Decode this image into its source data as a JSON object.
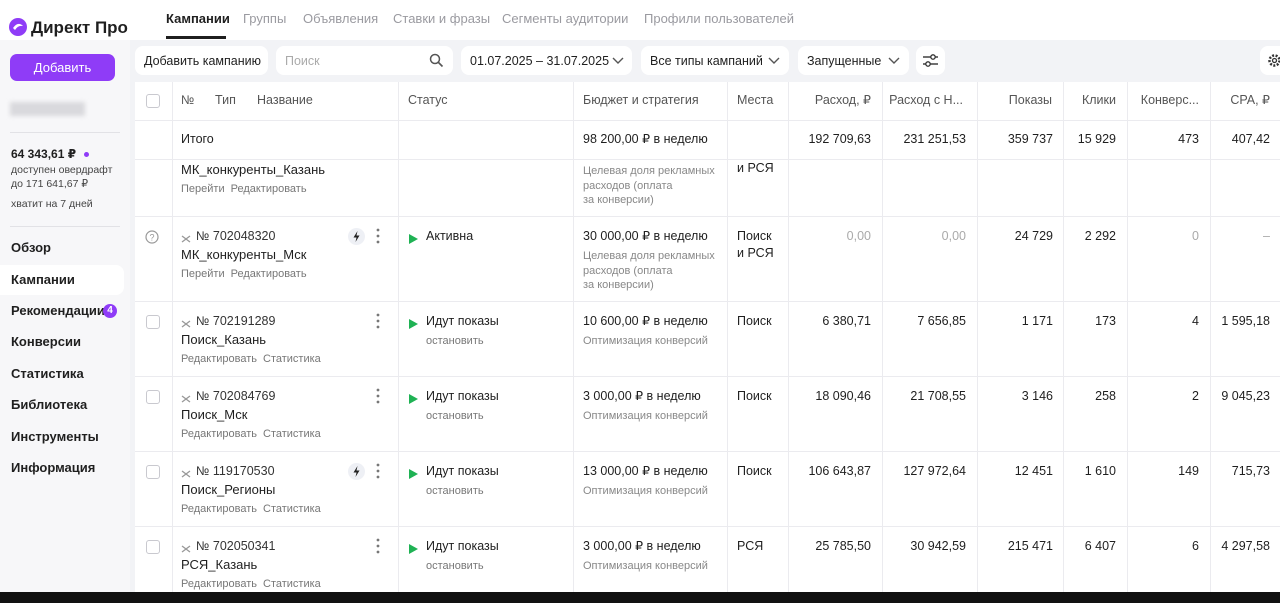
{
  "sidebar": {
    "logo": "Директ Про",
    "add_button": "Добавить",
    "balance": "64 343,61 ₽",
    "overdraft": [
      "доступен овердрафт",
      "до 171 641,67 ₽"
    ],
    "days_left": "хватит на 7 дней",
    "nav": [
      "Обзор",
      "Кампании",
      "Рекомендации",
      "Конверсии",
      "Статистика",
      "Библиотека",
      "Инструменты",
      "Информация"
    ],
    "active_nav": 1,
    "recommendations_badge": "4"
  },
  "tabs": {
    "items": [
      "Кампании",
      "Группы",
      "Объявления",
      "Ставки и фразы",
      "Сегменты аудитории",
      "Профили пользователей"
    ],
    "active": 0
  },
  "filters": {
    "add_campaign": "Добавить кампанию",
    "search_placeholder": "Поиск",
    "date_range": "01.07.2025 – 31.07.2025",
    "campaign_types": "Все типы кампаний",
    "state": "Запущенные"
  },
  "table": {
    "headers": [
      "№",
      "Тип",
      "Название",
      "Статус",
      "Бюджет и стратегия",
      "Места",
      "Расход, ₽",
      "Расход с Н...",
      "Показы",
      "Клики",
      "Конверс...",
      "CPA, ₽"
    ],
    "total": {
      "label": "Итого",
      "budget": "98 200,00 ₽ в неделю",
      "spend": "192 709,63",
      "spend_vat": "231 251,53",
      "impressions": "359 737",
      "clicks": "15 929",
      "conversions": "473",
      "cpa": "407,42"
    },
    "rows": [
      {
        "name": "МК_конкуренты_Казань",
        "links": [
          "Перейти",
          "Редактировать"
        ],
        "strategy": [
          "Целевая доля рекламных",
          "расходов (оплата",
          "за конверсии)"
        ],
        "places": [
          "и РСЯ"
        ]
      },
      {
        "number": "№ 702048320",
        "name": "МК_конкуренты_Мск",
        "links": [
          "Перейти",
          "Редактировать"
        ],
        "lightning": true,
        "muted": true,
        "status": "Активна",
        "budget": "30 000,00 ₽ в неделю",
        "strategy": [
          "Целевая доля рекламных",
          "расходов (оплата",
          "за конверсии)"
        ],
        "places": [
          "Поиск",
          "и РСЯ"
        ],
        "spend": "0,00",
        "spend_vat": "0,00",
        "impressions": "24 729",
        "clicks": "2 292",
        "conversions": "0",
        "cpa": "–"
      },
      {
        "number": "№ 702191289",
        "name": "Поиск_Казань",
        "links": [
          "Редактировать",
          "Статистика"
        ],
        "status": "Идут показы",
        "status_action": "остановить",
        "budget": "10 600,00 ₽ в неделю",
        "strategy": [
          "Оптимизация конверсий"
        ],
        "places": [
          "Поиск"
        ],
        "spend": "6 380,71",
        "spend_vat": "7 656,85",
        "impressions": "1 171",
        "clicks": "173",
        "conversions": "4",
        "cpa": "1 595,18"
      },
      {
        "number": "№ 702084769",
        "name": "Поиск_Мск",
        "links": [
          "Редактировать",
          "Статистика"
        ],
        "status": "Идут показы",
        "status_action": "остановить",
        "budget": "3 000,00 ₽ в неделю",
        "strategy": [
          "Оптимизация конверсий"
        ],
        "places": [
          "Поиск"
        ],
        "spend": "18 090,46",
        "spend_vat": "21 708,55",
        "impressions": "3 146",
        "clicks": "258",
        "conversions": "2",
        "cpa": "9 045,23"
      },
      {
        "number": "№ 119170530",
        "name": "Поиск_Регионы",
        "links": [
          "Редактировать",
          "Статистика"
        ],
        "lightning": true,
        "status": "Идут показы",
        "status_action": "остановить",
        "budget": "13 000,00 ₽ в неделю",
        "strategy": [
          "Оптимизация конверсий"
        ],
        "places": [
          "Поиск"
        ],
        "spend": "106 643,87",
        "spend_vat": "127 972,64",
        "impressions": "12 451",
        "clicks": "1 610",
        "conversions": "149",
        "cpa": "715,73"
      },
      {
        "number": "№ 702050341",
        "name": "РСЯ_Казань",
        "links": [
          "Редактировать",
          "Статистика"
        ],
        "status": "Идут показы",
        "status_action": "остановить",
        "budget": "3 000,00 ₽ в неделю",
        "strategy": [
          "Оптимизация конверсий"
        ],
        "places": [
          "РСЯ"
        ],
        "spend": "25 785,50",
        "spend_vat": "30 942,59",
        "impressions": "215 471",
        "clicks": "6 407",
        "conversions": "6",
        "cpa": "4 297,58"
      }
    ]
  }
}
